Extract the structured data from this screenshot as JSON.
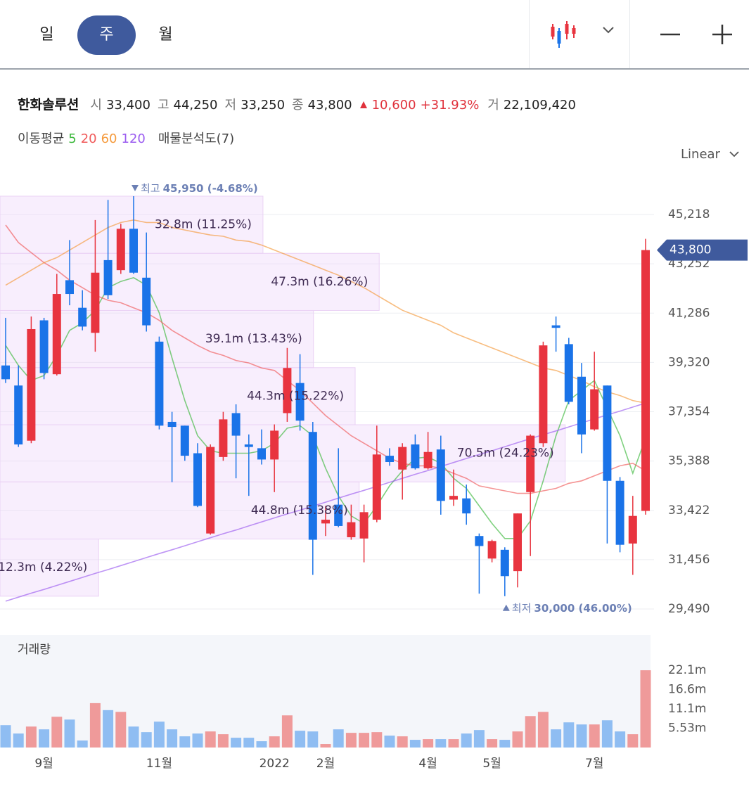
{
  "header": {
    "tabs": [
      "일",
      "주",
      "월"
    ],
    "active_tab": 1,
    "stock": {
      "name": "한화솔루션",
      "stats": [
        {
          "label": "시",
          "value": "33,400"
        },
        {
          "label": "고",
          "value": "44,250"
        },
        {
          "label": "저",
          "value": "33,250"
        },
        {
          "label": "종",
          "value": "43,800"
        }
      ],
      "change": "10,600",
      "change_pct": "+31.93%",
      "volume_label": "거",
      "volume": "22,109,420"
    },
    "ma_label": "이동평균",
    "scale": "Linear"
  },
  "chart_data": {
    "type": "candlestick",
    "up_color": "#e8343f",
    "down_color": "#1a73e8",
    "categories": [
      null,
      null,
      null,
      "9월",
      null,
      null,
      null,
      null,
      null,
      null,
      null,
      null,
      "11월",
      null,
      null,
      null,
      null,
      null,
      null,
      null,
      null,
      "2022",
      null,
      null,
      null,
      "2월",
      null,
      null,
      null,
      null,
      null,
      null,
      null,
      "4월",
      null,
      null,
      null,
      null,
      "5월",
      null,
      null,
      null,
      null,
      null,
      null,
      null,
      "7월",
      null,
      null,
      null,
      null
    ],
    "open": [
      39200,
      38400,
      36200,
      41000,
      38850,
      42600,
      41500,
      40500,
      43400,
      43000,
      44650,
      42700,
      40150,
      36950,
      36800,
      35700,
      32500,
      35550,
      37300,
      36050,
      35900,
      35450,
      37300,
      38500,
      36550,
      32900,
      33650,
      32350,
      32300,
      33050,
      35600,
      35050,
      36050,
      35100,
      35850,
      33850,
      33900,
      32400,
      31500,
      31850,
      31000,
      34150,
      36100,
      40800,
      40050,
      38750,
      36650,
      38400,
      34600,
      32100,
      33400
    ],
    "high": [
      41100,
      39200,
      41150,
      41100,
      42850,
      44200,
      42200,
      45000,
      45800,
      44850,
      45950,
      44500,
      40350,
      37350,
      36800,
      36100,
      36050,
      37350,
      37650,
      36450,
      36650,
      36850,
      39900,
      39650,
      36950,
      33600,
      35900,
      33650,
      33650,
      36800,
      35900,
      36100,
      36450,
      36550,
      36400,
      35050,
      34450,
      32500,
      32250,
      31950,
      33300,
      36450,
      40150,
      41150,
      40300,
      39300,
      39750,
      38400,
      34750,
      34000,
      44250
    ],
    "low": [
      38500,
      35950,
      36100,
      38650,
      38800,
      41600,
      40600,
      39750,
      41850,
      42850,
      42850,
      40550,
      36650,
      34550,
      35400,
      33550,
      32450,
      35400,
      34700,
      34000,
      35250,
      34150,
      36950,
      36600,
      30850,
      32400,
      32750,
      32250,
      31350,
      32950,
      35200,
      33850,
      35050,
      35050,
      33250,
      33600,
      32850,
      30100,
      31350,
      30000,
      30350,
      31600,
      35950,
      39750,
      37650,
      35700,
      36600,
      32100,
      31750,
      30850,
      33250
    ],
    "close": [
      38650,
      36050,
      40650,
      38900,
      42050,
      42050,
      40750,
      42900,
      42000,
      44650,
      42900,
      40800,
      36800,
      36750,
      35600,
      33600,
      35950,
      37050,
      36400,
      35950,
      35450,
      36600,
      39100,
      37000,
      32250,
      33050,
      32800,
      32950,
      33350,
      35650,
      35350,
      35950,
      35100,
      35750,
      33800,
      34000,
      33300,
      32000,
      32200,
      30800,
      33300,
      36400,
      40000,
      40700,
      37750,
      36450,
      38250,
      34600,
      32050,
      33200,
      43800
    ],
    "ylim": [
      28817,
      46762
    ],
    "yticks": [
      {
        "value": 29490,
        "label": "29,490"
      },
      {
        "value": 31456,
        "label": "31,456"
      },
      {
        "value": 33422,
        "label": "33,422"
      },
      {
        "value": 35388,
        "label": "35,388"
      },
      {
        "value": 37354,
        "label": "37,354"
      },
      {
        "value": 39320,
        "label": "39,320"
      },
      {
        "value": 41286,
        "label": "41,286"
      },
      {
        "value": 43252,
        "label": "43,252"
      },
      {
        "value": 45218,
        "label": "45,218"
      }
    ],
    "grid": true,
    "ma": [
      {
        "name": "5",
        "color": "#3cb83c",
        "values": [
          40000,
          39200,
          38600,
          38800,
          39600,
          40600,
          40900,
          41400,
          42300,
          42550,
          42700,
          42400,
          41300,
          39500,
          37800,
          36400,
          35800,
          35700,
          35700,
          35700,
          35800,
          36100,
          36700,
          36800,
          36400,
          35100,
          34000,
          33200,
          32900,
          33600,
          34400,
          35000,
          35500,
          35550,
          35300,
          34700,
          34300,
          33600,
          32900,
          32300,
          32300,
          33000,
          34600,
          36400,
          37800,
          38200,
          38600,
          37500,
          36400,
          34900,
          36300
        ]
      },
      {
        "name": "20",
        "color": "#f05a5a",
        "values": [
          44800,
          44100,
          43700,
          43300,
          43000,
          42600,
          42300,
          42000,
          41800,
          41700,
          41500,
          41300,
          41000,
          40600,
          40300,
          40000,
          39750,
          39600,
          39400,
          39300,
          39100,
          39000,
          38600,
          38200,
          37700,
          37200,
          36800,
          36400,
          36100,
          35800,
          35500,
          35300,
          35200,
          35200,
          35100,
          34900,
          34700,
          34400,
          34300,
          34200,
          34100,
          34100,
          34200,
          34300,
          34500,
          34600,
          34800,
          35000,
          35200,
          35300,
          35000
        ]
      },
      {
        "name": "60",
        "color": "#f59a3c",
        "values": [
          42400,
          42700,
          43000,
          43300,
          43500,
          43800,
          44100,
          44400,
          44700,
          44900,
          45000,
          44900,
          44900,
          44700,
          44600,
          44500,
          44400,
          44350,
          44200,
          44150,
          44000,
          43800,
          43600,
          43400,
          43200,
          43000,
          42800,
          42550,
          42300,
          42000,
          41700,
          41400,
          41200,
          41000,
          40800,
          40500,
          40300,
          40100,
          39900,
          39700,
          39500,
          39300,
          39100,
          39000,
          38800,
          38600,
          38350,
          38150,
          38000,
          37800,
          37700
        ]
      },
      {
        "name": "120",
        "color": "#9b5cf0",
        "values": [
          29800,
          29960,
          30120,
          30270,
          30430,
          30590,
          30750,
          30910,
          31060,
          31220,
          31380,
          31540,
          31700,
          31850,
          32010,
          32170,
          32330,
          32490,
          32640,
          32800,
          32960,
          33120,
          33280,
          33430,
          33590,
          33750,
          33910,
          34070,
          34220,
          34380,
          34540,
          34700,
          34860,
          35010,
          35170,
          35330,
          35490,
          35650,
          35800,
          35960,
          36120,
          36280,
          36440,
          36590,
          36750,
          36910,
          37070,
          37230,
          37380,
          37540,
          37700
        ]
      }
    ],
    "profile": {
      "title": "매물분석도(7)",
      "bands": [
        {
          "range": [
            43671,
            45950
          ],
          "value": 32.8,
          "label": "32.8m (11.25%)"
        },
        {
          "range": [
            41393,
            43671
          ],
          "value": 47.3,
          "label": "47.3m (16.26%)"
        },
        {
          "range": [
            39114,
            41393
          ],
          "value": 39.1,
          "label": "39.1m (13.43%)"
        },
        {
          "range": [
            36836,
            39114
          ],
          "value": 44.3,
          "label": "44.3m (15.22%)"
        },
        {
          "range": [
            34557,
            36836
          ],
          "value": 70.5,
          "label": "70.5m (24.23%)"
        },
        {
          "range": [
            32279,
            34557
          ],
          "value": 44.8,
          "label": "44.8m (15.38%)"
        },
        {
          "range": [
            30000,
            32279
          ],
          "value": 12.3,
          "label": "12.3m (4.22%)"
        }
      ]
    },
    "high_marker": {
      "title": "최고",
      "value": 45950,
      "label": "45,950 (-4.68%)"
    },
    "low_marker": {
      "title": "최저",
      "value": 30000,
      "label": "30,000 (46.00%)"
    },
    "volume": {
      "title": "거래량",
      "up_color": "#ef9a9a",
      "down_color": "#8fbdf2",
      "values": [
        6.4,
        4.0,
        6.0,
        5.2,
        8.8,
        8.0,
        2.0,
        12.7,
        10.7,
        10.2,
        6.0,
        4.4,
        7.4,
        5.2,
        3.2,
        4.0,
        4.6,
        3.8,
        2.8,
        2.8,
        1.8,
        3.2,
        9.2,
        4.8,
        4.6,
        1.0,
        5.2,
        4.2,
        4.2,
        4.4,
        3.4,
        3.2,
        2.2,
        2.4,
        2.4,
        2.4,
        4.0,
        5.0,
        2.4,
        2.2,
        4.6,
        9.0,
        10.2,
        5.2,
        7.2,
        6.6,
        6.6,
        7.8,
        4.6,
        3.8,
        22.10942
      ],
      "ylim": [
        0,
        32.2
      ],
      "yticks": [
        {
          "value": 5.53,
          "label": "5.53m"
        },
        {
          "value": 11.1,
          "label": "11.1m"
        },
        {
          "value": 16.6,
          "label": "16.6m"
        },
        {
          "value": 22.1,
          "label": "22.1m"
        }
      ]
    }
  }
}
